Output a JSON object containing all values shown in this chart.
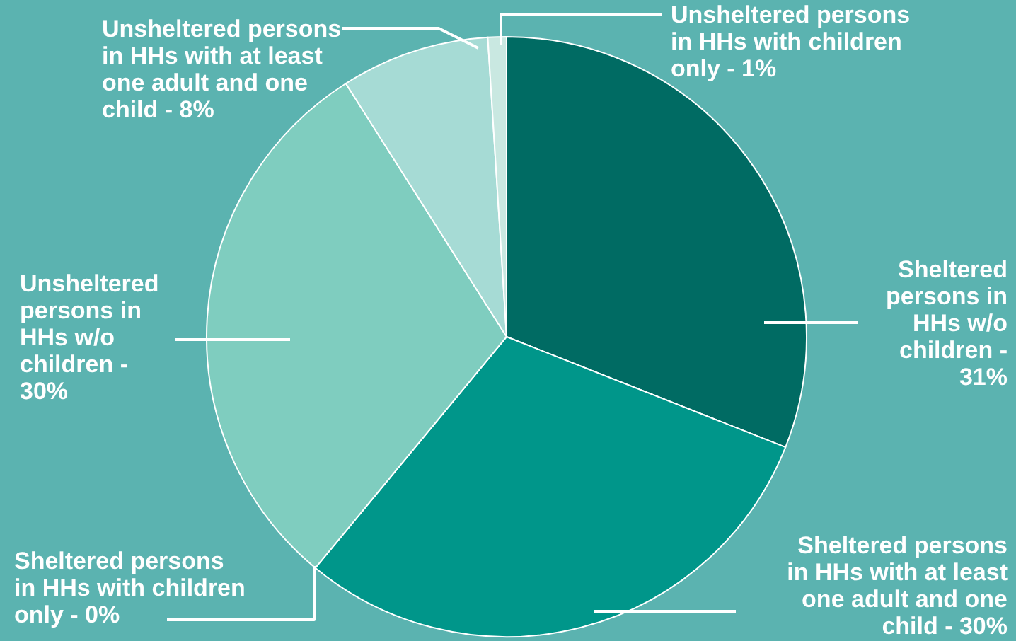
{
  "chart_data": {
    "type": "pie",
    "categories": [
      "Sheltered persons in HHs w/o children - 31%",
      "Sheltered persons in HHs with at least one adult and one child - 30%",
      "Sheltered persons in HHs with children only - 0%",
      "Unsheltered persons in HHs w/o children - 30%",
      "Unsheltered persons in HHs with at least one adult and one child - 8%",
      "Unsheltered persons in HHs with children only - 1%"
    ],
    "values": [
      31,
      30,
      0,
      30,
      8,
      1
    ],
    "colors": [
      "#006b63",
      "#00968a",
      "#2cbfa9",
      "#7fcdbf",
      "#a6dbd5",
      "#c9e8e1"
    ],
    "legend": false
  }
}
